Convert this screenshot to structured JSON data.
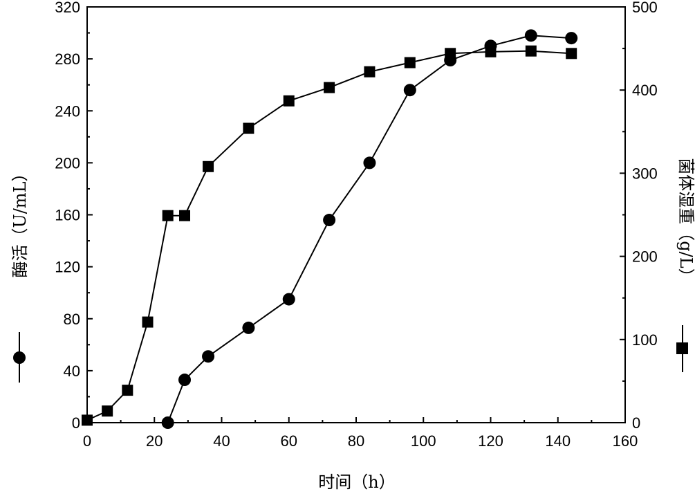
{
  "chart_data": {
    "type": "line",
    "xlabel": "时间（h）",
    "ylabel_left": "酶活（U/mL）",
    "ylabel_right": "菌体湿重（g/L）",
    "xlim": [
      0,
      160
    ],
    "ylim_left": [
      0,
      320
    ],
    "ylim_right": [
      0,
      500
    ],
    "x_ticks": [
      0,
      20,
      40,
      60,
      80,
      100,
      120,
      140,
      160
    ],
    "y_ticks_left": [
      0,
      40,
      80,
      120,
      160,
      200,
      240,
      280,
      320
    ],
    "y_ticks_right": [
      0,
      100,
      200,
      300,
      400,
      500
    ],
    "grid": false,
    "series": [
      {
        "axis": "left",
        "marker": "circle",
        "x": [
          24,
          29,
          36,
          48,
          60,
          72,
          84,
          96,
          108,
          120,
          132,
          144
        ],
        "y": [
          0,
          33,
          51,
          73,
          95,
          156,
          200,
          256,
          279,
          290,
          298,
          296
        ]
      },
      {
        "axis": "right",
        "marker": "square",
        "x": [
          0,
          6,
          12,
          18,
          24,
          29,
          36,
          48,
          60,
          72,
          84,
          96,
          108,
          120,
          132,
          144
        ],
        "y": [
          3,
          14,
          39,
          121,
          249,
          249,
          308,
          354,
          387,
          403,
          422,
          433,
          444,
          446,
          447,
          444
        ]
      }
    ]
  }
}
